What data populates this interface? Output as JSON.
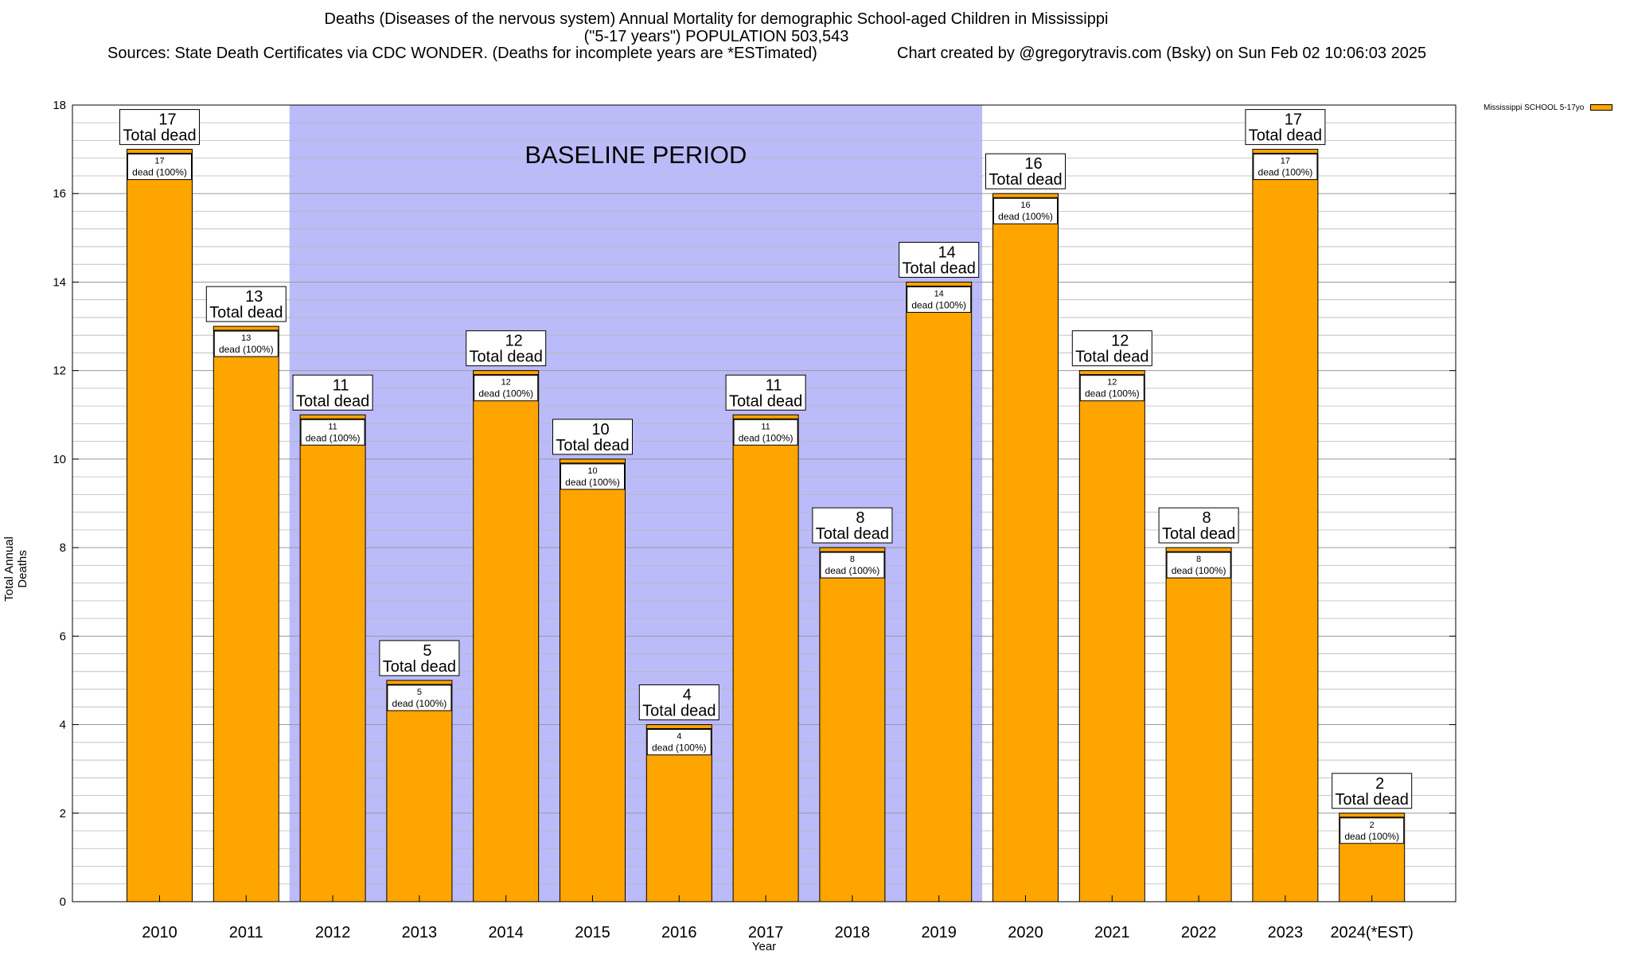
{
  "title": {
    "line1": "Deaths (Diseases of the nervous system) Annual Mortality for demographic School-aged Children in Mississippi",
    "line2": "(\"5-17 years\") POPULATION 503,543",
    "line3": "Sources: State Death Certificates via CDC WONDER. (Deaths for incomplete years are *ESTimated)",
    "line4": "Chart created by @gregorytravis.com (Bsky) on Sun Feb 02 10:06:03 2025"
  },
  "colors": {
    "bar": "#FFA500",
    "baseline": "#BBBBF9",
    "grid": "#b8b8b8"
  },
  "chart_data": {
    "type": "bar",
    "title": "Deaths (Diseases of the nervous system) Annual Mortality for demographic School-aged Children in Mississippi",
    "xlabel": "Year",
    "ylabel": "Total Annual Deaths",
    "categories": [
      "2010",
      "2011",
      "2012",
      "2013",
      "2014",
      "2015",
      "2016",
      "2017",
      "2018",
      "2019",
      "2020",
      "2021",
      "2022",
      "2023",
      "2024(*EST)"
    ],
    "series": [
      {
        "name": "Mississippi SCHOOL 5-17yo",
        "values": [
          17,
          13,
          11,
          5,
          12,
          10,
          4,
          11,
          8,
          14,
          16,
          12,
          8,
          17,
          2
        ]
      }
    ],
    "ylim": [
      0,
      18
    ],
    "yticks": [
      0,
      2,
      4,
      6,
      8,
      10,
      12,
      14,
      16,
      18
    ],
    "grid": true,
    "legend": "top-right",
    "total_label": "Total dead",
    "segment_label": "dead (100%)",
    "annotation": {
      "text": "BASELINE PERIOD",
      "start": "2012",
      "end": "2019"
    }
  }
}
